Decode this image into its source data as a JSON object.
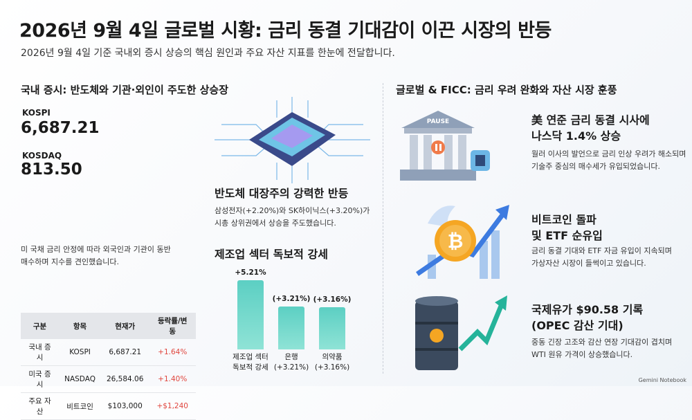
{
  "header": {
    "title": "2026년 9월 4일 글로벌 시황: 금리 동결 기대감이 이끈 시장의 반등",
    "subtitle": "2026년 9월 4일 기준 국내외 증시 상승의 핵심 원인과 주요 자산 지표를 한눈에 전달합니다."
  },
  "domestic": {
    "heading": "국내 증시: 반도체와 기관·외인이 주도한 상승장",
    "indices": [
      {
        "name": "KOSPI",
        "value": "6,687.21"
      },
      {
        "name": "KOSDAQ",
        "value": "813.50"
      }
    ],
    "note": "미 국채 금리 안정에 따라 외국인과 기관이 동반 매수하며 지수를 견인했습니다.",
    "semiconductor": {
      "title": "반도체 대장주의 강력한 반등",
      "body": "삼성전자(+2.20%)와 SK하이닉스(+3.20%)가 시총 상위권에서 상승을 주도했습니다."
    },
    "table": {
      "header": [
        "구분",
        "항목",
        "현재가",
        "등락률/변동"
      ],
      "rows": [
        [
          "국내 증시",
          "KOSPI",
          "6,687.21",
          "+1.64%"
        ],
        [
          "미국 증시",
          "NASDAQ",
          "26,584.06",
          "+1.40%"
        ],
        [
          "주요 자산",
          "비트코인",
          "$103,000",
          "+$1,240"
        ]
      ]
    }
  },
  "chart_data": {
    "type": "bar",
    "title": "제조업 섹터 독보적 강세",
    "categories": [
      "제조업 섹터\n독보적 강세",
      "은행\n(+3.21%)",
      "의약품\n(+3.16%)"
    ],
    "values": [
      5.21,
      3.21,
      3.16
    ],
    "value_labels": [
      "+5.21%",
      "(+3.21%)",
      "(+3.16%)"
    ],
    "color": "#5ccfc3"
  },
  "global": {
    "heading": "글로벌 & FICC: 금리 우려 완화와 자산 시장 훈풍",
    "bank_sign": "PAUSE",
    "items": [
      {
        "title": "美 연준 금리 동결 시사에\n나스닥 1.4% 상승",
        "body": "월러 이사의 발언으로 금리 인상 우려가 해소되며\n기술주 중심의 매수세가 유입되었습니다."
      },
      {
        "title": "비트코인 돌파\n및 ETF 순유입",
        "body": "금리 동결 기대와 ETF 자금 유입이 지속되며\n가상자산 시장이 들썩이고 있습니다."
      },
      {
        "title": "국제유가 $90.58 기록\n(OPEC 감산 기대)",
        "body": "중동 긴장 고조와 감산 연장 기대감이 겹치며\nWTI 원유 가격이 상승했습니다."
      }
    ]
  },
  "footer": "Gemini Notebook"
}
